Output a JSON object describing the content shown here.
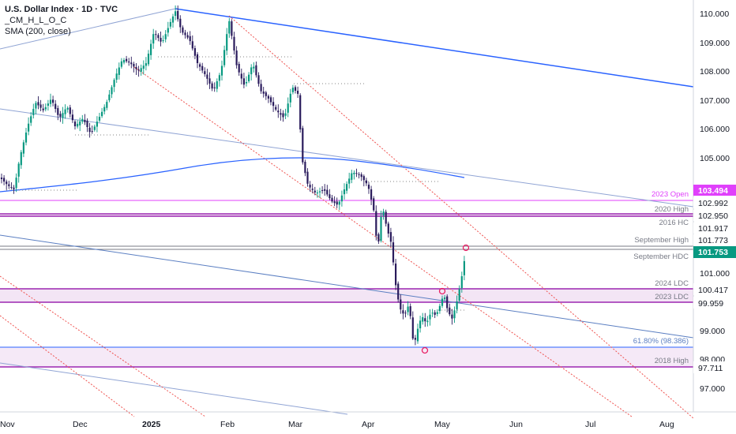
{
  "header": {
    "title": "U.S. Dollar Index · 1D · TVC",
    "indicator1": "_CM_H_L_O_C",
    "indicator2": "SMA (200, close)"
  },
  "chart_data": {
    "type": "candlestick",
    "x_ticks": [
      "Nov",
      "Dec",
      "2025",
      "Feb",
      "Mar",
      "Apr",
      "May",
      "Jun",
      "Jul",
      "Aug"
    ],
    "y_ticks": [
      "110.000",
      "109.000",
      "108.000",
      "107.000",
      "106.000",
      "105.000",
      "101.000",
      "99.000",
      "98.000",
      "97.000"
    ],
    "ylim": [
      96.5,
      110.3
    ],
    "levels": [
      {
        "label": "2023 Open",
        "value": 103.494,
        "badge": "103.494",
        "color": "#e040fb"
      },
      {
        "label": "2020 High",
        "value": 102.992,
        "badge": "102.992",
        "color": "#9c27b0"
      },
      {
        "label": "2016 HC",
        "value": 102.95,
        "badge": "102.950",
        "color": "#9c27b0"
      },
      {
        "label": "",
        "value": 101.917,
        "badge": "101.917",
        "color": "#787b86"
      },
      {
        "label": "September High",
        "value": 101.773,
        "badge": "101.773",
        "color": "#787b86"
      },
      {
        "label": "September HDC",
        "value": 101.753,
        "badge": "101.753",
        "color": "#089981"
      },
      {
        "label": "2024 LDC",
        "value": 100.417,
        "badge": "100.417",
        "color": "#9c27b0"
      },
      {
        "label": "2023 LDC",
        "value": 99.959,
        "badge": "99.959",
        "color": "#9c27b0"
      },
      {
        "label": "61.80% (98.386)",
        "value": 98.386,
        "badge": "",
        "color": "#2962ff"
      },
      {
        "label": "2018 High",
        "value": 97.711,
        "badge": "97.711",
        "color": "#9c27b0"
      }
    ],
    "last_price": 101.753
  }
}
